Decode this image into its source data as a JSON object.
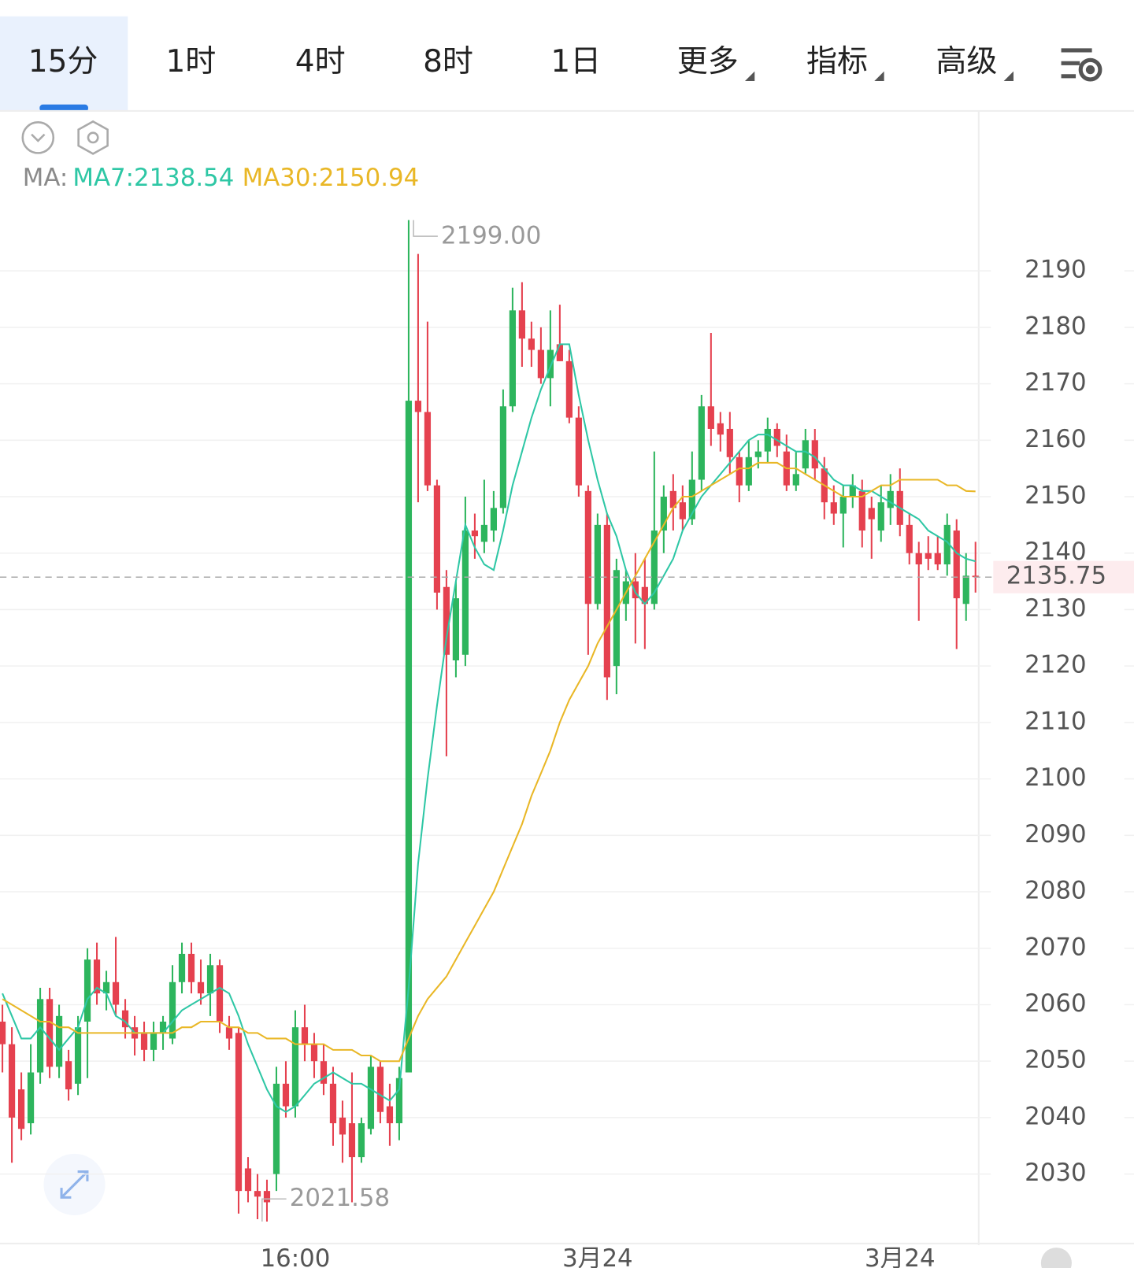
{
  "tabs": [
    "15分",
    "1时",
    "4时",
    "8时",
    "1日"
  ],
  "menus": [
    "更多",
    "指标",
    "高级"
  ],
  "chart_data": {
    "type": "candlestick",
    "indicator_label": "MA:",
    "categories": [
      null,
      null,
      null,
      null,
      null,
      null,
      null,
      null,
      null,
      null,
      null,
      null,
      null,
      null,
      null,
      null,
      null,
      null,
      null,
      null,
      null,
      null,
      null,
      null,
      null,
      null,
      null,
      null,
      null,
      null,
      null,
      "16:00",
      null,
      null,
      null,
      null,
      null,
      null,
      null,
      null,
      null,
      null,
      null,
      null,
      null,
      null,
      null,
      null,
      null,
      null,
      null,
      null,
      null,
      null,
      null,
      null,
      null,
      null,
      null,
      null,
      null,
      null,
      null,
      "3月24",
      null,
      null,
      null,
      null,
      null,
      null,
      null,
      null,
      null,
      null,
      null,
      null,
      null,
      null,
      null,
      null,
      null,
      null,
      null,
      null,
      null,
      null,
      null,
      null,
      null,
      null,
      null,
      null,
      null,
      null,
      null,
      "3月24",
      null,
      null,
      null,
      null,
      null,
      null,
      null,
      null
    ],
    "open": [
      2057,
      2053,
      2045,
      2039,
      2048,
      2061,
      2049,
      2050,
      2046,
      2057,
      2068,
      2062,
      2064,
      2059,
      2056,
      2055,
      2052,
      2055,
      2054,
      2064,
      2069,
      2064,
      2062,
      2067,
      2056,
      2055,
      2031,
      2027,
      2027,
      2030,
      2046,
      2042,
      2056,
      2053,
      2050,
      2046,
      2040,
      2039,
      2033,
      2038,
      2049,
      2042,
      2039,
      2048,
      2167,
      2165,
      2152,
      2134,
      2121,
      2122,
      2144,
      2142,
      2144,
      2148,
      2166,
      2183,
      2178,
      2176,
      2171,
      2177,
      2174,
      2164,
      2151,
      2131,
      2145,
      2120,
      2131,
      2135,
      2134,
      2131,
      2144,
      2151,
      2149,
      2146,
      2153,
      2166,
      2163,
      2162,
      2157,
      2152,
      2157,
      2158,
      2162,
      2158,
      2152,
      2155,
      2160,
      2155,
      2149,
      2147,
      2150,
      2151,
      2148,
      2144,
      2148,
      2151,
      2145,
      2140,
      2140,
      2140,
      2138,
      2144,
      2131,
      2136
    ],
    "high": [
      2060,
      2056,
      2048,
      2053,
      2063,
      2063,
      2060,
      2052,
      2058,
      2070,
      2071,
      2066,
      2072,
      2061,
      2058,
      2057,
      2057,
      2058,
      2067,
      2071,
      2071,
      2068,
      2069,
      2068,
      2058,
      2056,
      2033,
      2030,
      2029,
      2049,
      2050,
      2059,
      2060,
      2055,
      2053,
      2049,
      2043,
      2048,
      2040,
      2051,
      2050,
      2046,
      2049,
      2199,
      2193,
      2181,
      2153,
      2137,
      2135,
      2150,
      2147,
      2153,
      2151,
      2169,
      2187,
      2188,
      2181,
      2180,
      2183,
      2184,
      2176,
      2166,
      2152,
      2147,
      2147,
      2139,
      2137,
      2140,
      2139,
      2158,
      2152,
      2154,
      2152,
      2158,
      2168,
      2179,
      2165,
      2165,
      2158,
      2160,
      2160,
      2164,
      2163,
      2161,
      2158,
      2162,
      2162,
      2157,
      2152,
      2152,
      2154,
      2153,
      2150,
      2152,
      2154,
      2155,
      2147,
      2142,
      2143,
      2143,
      2147,
      2146,
      2140,
      2142
    ],
    "low": [
      2048,
      2032,
      2036,
      2037,
      2046,
      2047,
      2047,
      2043,
      2044,
      2047,
      2060,
      2059,
      2058,
      2054,
      2051,
      2050,
      2050,
      2052,
      2053,
      2062,
      2062,
      2060,
      2058,
      2055,
      2052,
      2023,
      2025,
      2022,
      2021.58,
      2027,
      2040,
      2040,
      2050,
      2047,
      2044,
      2035,
      2032,
      2025,
      2032,
      2037,
      2039,
      2035,
      2036,
      2048,
      2149,
      2151,
      2130,
      2104,
      2118,
      2120,
      2139,
      2140,
      2142,
      2147,
      2165,
      2173,
      2173,
      2170,
      2166,
      2174,
      2163,
      2150,
      2122,
      2130,
      2114,
      2115,
      2128,
      2124,
      2123,
      2130,
      2140,
      2144,
      2144,
      2145,
      2151,
      2159,
      2158,
      2154,
      2149,
      2151,
      2155,
      2156,
      2157,
      2151,
      2151,
      2154,
      2153,
      2146,
      2145,
      2141,
      2148,
      2141,
      2139,
      2142,
      2145,
      2143,
      2138,
      2128,
      2137,
      2137,
      2136,
      2123,
      2128,
      2133
    ],
    "close": [
      2053,
      2040,
      2038,
      2048,
      2061,
      2049,
      2058,
      2045,
      2056,
      2068,
      2062,
      2064,
      2060,
      2056,
      2054,
      2052,
      2055,
      2057,
      2064,
      2069,
      2064,
      2062,
      2067,
      2057,
      2054,
      2027,
      2027,
      2026,
      2025,
      2046,
      2042,
      2056,
      2053,
      2050,
      2046,
      2039,
      2037,
      2033,
      2039,
      2049,
      2041,
      2039,
      2047,
      2167,
      2165,
      2152,
      2133,
      2122,
      2132,
      2144,
      2143,
      2145,
      2148,
      2166,
      2183,
      2178,
      2176,
      2171,
      2176,
      2174,
      2164,
      2152,
      2131,
      2145,
      2118,
      2137,
      2135,
      2132,
      2131,
      2144,
      2150,
      2148,
      2146,
      2153,
      2166,
      2162,
      2161,
      2157,
      2152,
      2157,
      2158,
      2162,
      2159,
      2152,
      2154,
      2160,
      2155,
      2149,
      2147,
      2150,
      2152,
      2144,
      2146,
      2149,
      2151,
      2145,
      2140,
      2138,
      2139,
      2138,
      2145,
      2132,
      2136,
      2135.75
    ],
    "up_color": "#2db55d",
    "down_color": "#e5414f",
    "series": [
      {
        "name": "MA7:2138.54",
        "color": "#2ec7a5",
        "values": [
          2062,
          2058,
          2054,
          2054,
          2056,
          2054,
          2052,
          2054,
          2056,
          2061,
          2063,
          2062,
          2058,
          2057,
          2055,
          2055,
          2055,
          2055,
          2057,
          2059,
          2060,
          2061,
          2062,
          2063,
          2062,
          2058,
          2053,
          2049,
          2045,
          2042,
          2041,
          2042,
          2044,
          2046,
          2047,
          2048,
          2047,
          2046,
          2046,
          2045,
          2044,
          2043,
          2045,
          2063,
          2085,
          2100,
          2113,
          2125,
          2135,
          2145,
          2141,
          2138,
          2137,
          2144,
          2152,
          2158,
          2164,
          2169,
          2173,
          2177,
          2177,
          2168,
          2160,
          2153,
          2147,
          2143,
          2137,
          2133,
          2131,
          2133,
          2136,
          2139,
          2144,
          2147,
          2150,
          2152,
          2154,
          2156,
          2158,
          2160,
          2161,
          2161,
          2160,
          2159,
          2158,
          2158,
          2157,
          2155,
          2153,
          2152,
          2152,
          2151,
          2151,
          2150,
          2149,
          2148,
          2147,
          2146,
          2144,
          2143,
          2142,
          2140,
          2139,
          2138.54
        ]
      },
      {
        "name": "MA30:2150.94",
        "color": "#e9b726",
        "values": [
          2061,
          2060,
          2059,
          2058,
          2057,
          2057,
          2056,
          2056,
          2055,
          2055,
          2055,
          2055,
          2055,
          2055,
          2055,
          2055,
          2055,
          2055,
          2055,
          2056,
          2056,
          2057,
          2057,
          2057,
          2056,
          2056,
          2055,
          2055,
          2054,
          2054,
          2054,
          2053,
          2053,
          2053,
          2053,
          2052,
          2052,
          2052,
          2051,
          2051,
          2050,
          2050,
          2050,
          2054,
          2058,
          2061,
          2063,
          2065,
          2068,
          2071,
          2074,
          2077,
          2080,
          2084,
          2088,
          2092,
          2097,
          2101,
          2105,
          2110,
          2114,
          2117,
          2120,
          2124,
          2127,
          2130,
          2133,
          2136,
          2139,
          2142,
          2145,
          2148,
          2150,
          2150,
          2151,
          2152,
          2153,
          2154,
          2155,
          2155,
          2156,
          2156,
          2156,
          2155,
          2155,
          2154,
          2153,
          2152,
          2151,
          2150,
          2150,
          2150,
          2151,
          2152,
          2152,
          2153,
          2153,
          2153,
          2153,
          2153,
          2152,
          2152,
          2151,
          2150.94
        ]
      }
    ],
    "ylim": [
      2017.4,
      2217.9
    ],
    "yticks": [
      2030,
      2040,
      2050,
      2060,
      2070,
      2080,
      2090,
      2100,
      2110,
      2120,
      2130,
      2140,
      2150,
      2160,
      2170,
      2180,
      2190
    ],
    "grid": true,
    "last_price": 2135.75,
    "high_label": {
      "value": 2199,
      "label": "2199.00"
    },
    "low_label": 2021.58
  }
}
